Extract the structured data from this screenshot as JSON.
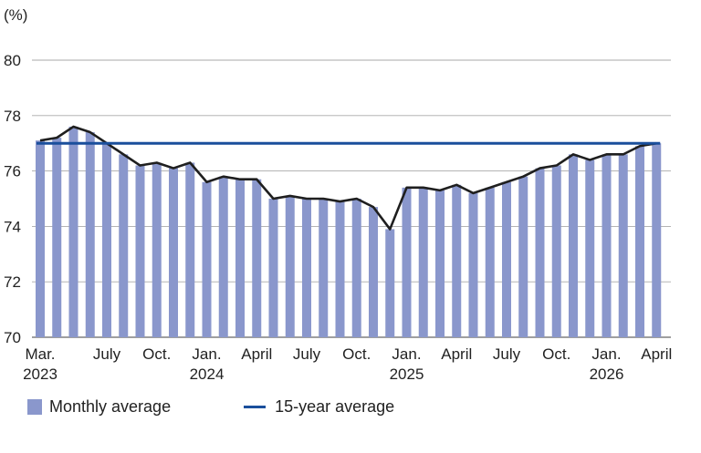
{
  "chart_data": {
    "type": "bar",
    "unit_label": "(%)",
    "ylim": [
      70,
      80
    ],
    "y_ticks": [
      "70",
      "72",
      "74",
      "76",
      "78",
      "80"
    ],
    "grid": true,
    "categories": [
      "2023-03",
      "2023-04",
      "2023-05",
      "2023-06",
      "2023-07",
      "2023-08",
      "2023-09",
      "2023-10",
      "2023-11",
      "2023-12",
      "2024-01",
      "2024-02",
      "2024-03",
      "2024-04",
      "2024-05",
      "2024-06",
      "2024-07",
      "2024-08",
      "2024-09",
      "2024-10",
      "2024-11",
      "2024-12",
      "2025-01",
      "2025-02",
      "2025-03",
      "2025-04",
      "2025-05",
      "2025-06",
      "2025-07",
      "2025-08",
      "2025-09",
      "2025-10",
      "2025-11",
      "2025-12",
      "2026-01",
      "2026-02",
      "2026-03",
      "2026-04"
    ],
    "x_tick_labels": [
      {
        "index": 0,
        "month": "Mar.",
        "year": "2023"
      },
      {
        "index": 4,
        "month": "July",
        "year": ""
      },
      {
        "index": 7,
        "month": "Oct.",
        "year": ""
      },
      {
        "index": 10,
        "month": "Jan.",
        "year": "2024"
      },
      {
        "index": 13,
        "month": "April",
        "year": ""
      },
      {
        "index": 16,
        "month": "July",
        "year": ""
      },
      {
        "index": 19,
        "month": "Oct.",
        "year": ""
      },
      {
        "index": 22,
        "month": "Jan.",
        "year": "2025"
      },
      {
        "index": 25,
        "month": "April",
        "year": ""
      },
      {
        "index": 28,
        "month": "July",
        "year": ""
      },
      {
        "index": 31,
        "month": "Oct.",
        "year": ""
      },
      {
        "index": 34,
        "month": "Jan.",
        "year": "2026"
      },
      {
        "index": 37,
        "month": "April",
        "year": ""
      }
    ],
    "series": [
      {
        "name": "Monthly average",
        "kind": "bar",
        "color": "#8a97cc",
        "values": [
          77.1,
          77.2,
          77.6,
          77.4,
          77.0,
          76.6,
          76.2,
          76.3,
          76.1,
          76.3,
          75.6,
          75.8,
          75.7,
          75.7,
          75.0,
          75.1,
          75.0,
          75.0,
          74.9,
          75.0,
          74.7,
          73.9,
          75.4,
          75.4,
          75.3,
          75.5,
          75.2,
          75.4,
          75.6,
          75.8,
          76.1,
          76.2,
          76.6,
          76.4,
          76.6,
          76.6,
          76.9,
          77.0
        ]
      },
      {
        "name": "",
        "kind": "line",
        "color": "#1f1f1f",
        "values": [
          77.1,
          77.2,
          77.6,
          77.4,
          77.0,
          76.6,
          76.2,
          76.3,
          76.1,
          76.3,
          75.6,
          75.8,
          75.7,
          75.7,
          75.0,
          75.1,
          75.0,
          75.0,
          74.9,
          75.0,
          74.7,
          73.9,
          75.4,
          75.4,
          75.3,
          75.5,
          75.2,
          75.4,
          75.6,
          75.8,
          76.1,
          76.2,
          76.6,
          76.4,
          76.6,
          76.6,
          76.9,
          77.0
        ]
      },
      {
        "name": "15-year average",
        "kind": "reference-line",
        "color": "#1a4f9c",
        "value": 77.0
      }
    ],
    "legend": {
      "position": "bottom-left",
      "items": [
        {
          "label": "Monthly average",
          "color": "#8a97cc",
          "kind": "bar"
        },
        {
          "label": "15-year average",
          "color": "#1a4f9c",
          "kind": "line"
        }
      ]
    }
  }
}
